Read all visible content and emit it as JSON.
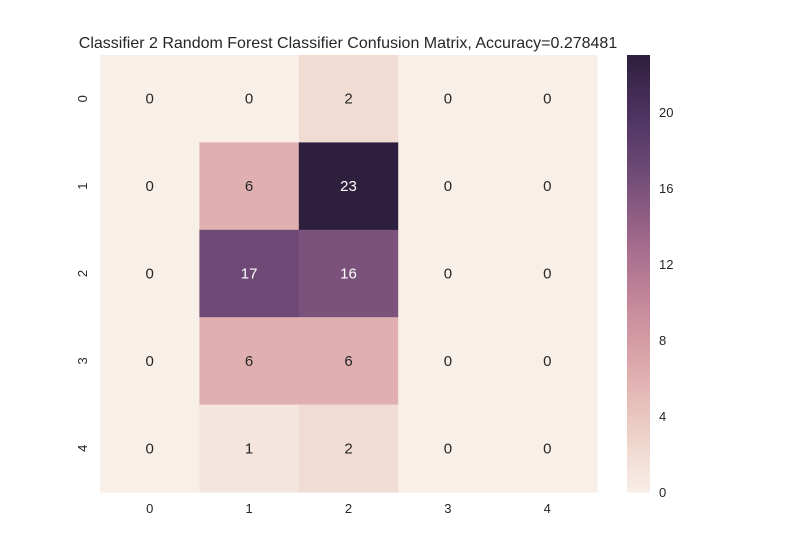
{
  "chart_data": {
    "type": "heatmap",
    "title": "Classifier 2 Random Forest Classifier Confusion Matrix, Accuracy=0.278481",
    "x_categories": [
      "0",
      "1",
      "2",
      "3",
      "4"
    ],
    "y_categories": [
      "0",
      "1",
      "2",
      "3",
      "4"
    ],
    "values": [
      [
        0,
        0,
        2,
        0,
        0
      ],
      [
        0,
        6,
        23,
        0,
        0
      ],
      [
        0,
        17,
        16,
        0,
        0
      ],
      [
        0,
        6,
        6,
        0,
        0
      ],
      [
        0,
        1,
        2,
        0,
        0
      ]
    ],
    "colorbar": {
      "min": 0,
      "max": 23,
      "ticks": [
        "0",
        "4",
        "8",
        "12",
        "16",
        "20"
      ]
    },
    "colormap": [
      "#f8efe8",
      "#eccfc6",
      "#deaaac",
      "#c6899b",
      "#a36a8c",
      "#744e79",
      "#4f3462",
      "#2e1f3e"
    ]
  }
}
